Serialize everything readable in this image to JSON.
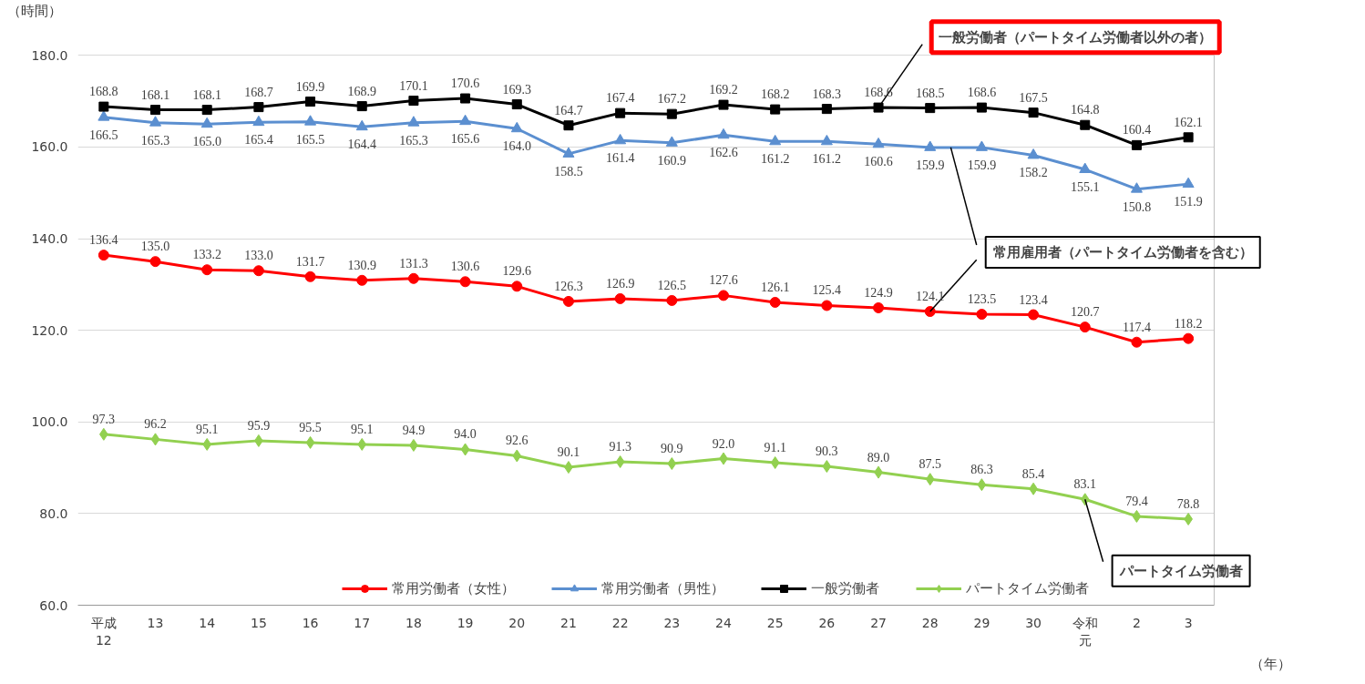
{
  "chart_data": {
    "type": "line",
    "ylabel": "（時間）",
    "xlabel": "（年）",
    "categories": [
      "平成12",
      "13",
      "14",
      "15",
      "16",
      "17",
      "18",
      "19",
      "20",
      "21",
      "22",
      "23",
      "24",
      "25",
      "26",
      "27",
      "28",
      "29",
      "30",
      "令和元",
      "2",
      "3"
    ],
    "series": [
      {
        "name": "常用労働者（女性）",
        "color": "#ff0000",
        "marker": "circle",
        "values": [
          136.4,
          135.0,
          133.2,
          133.0,
          131.7,
          130.9,
          131.3,
          130.6,
          129.6,
          126.3,
          126.9,
          126.5,
          127.6,
          126.1,
          125.4,
          124.9,
          124.1,
          123.5,
          123.4,
          120.7,
          117.4,
          118.2
        ],
        "value_labels": [
          "136.4",
          "135.0",
          "133.2",
          "133.0",
          "131.7",
          "130.9",
          "131.3",
          "130.6",
          "129.6",
          "126.3",
          "126.9",
          "126.5",
          "127.6",
          "126.1",
          "125.4",
          "124.9",
          "124.1",
          "123.5",
          "123.4",
          "120.7",
          "117.4",
          "118.2"
        ]
      },
      {
        "name": "常用労働者（男性）",
        "color": "#5b8fd0",
        "marker": "triangle",
        "values": [
          166.5,
          165.3,
          165.0,
          165.4,
          165.5,
          164.4,
          165.3,
          165.6,
          164.0,
          158.5,
          161.4,
          160.9,
          162.6,
          161.2,
          161.2,
          160.6,
          159.9,
          159.9,
          158.2,
          155.1,
          150.8,
          151.9
        ],
        "value_labels": [
          "166.5",
          "165.3",
          "165.0",
          "165.4",
          "165.5",
          "164.4",
          "165.3",
          "165.6",
          "164.0",
          "158.5",
          "161.4",
          "160.9",
          "162.6",
          "161.2",
          "161.2",
          "160.6",
          "159.9",
          "159.9",
          "158.2",
          "155.1",
          "150.8",
          "151.9"
        ]
      },
      {
        "name": "一般労働者",
        "color": "#000000",
        "marker": "square",
        "values": [
          168.8,
          168.1,
          168.1,
          168.7,
          169.9,
          168.9,
          170.1,
          170.6,
          169.3,
          164.7,
          167.4,
          167.2,
          169.2,
          168.2,
          168.3,
          168.6,
          168.5,
          168.6,
          167.5,
          164.8,
          160.4,
          162.1
        ],
        "value_labels": [
          "168.8",
          "168.1",
          "168.1",
          "168.7",
          "169.9",
          "168.9",
          "170.1",
          "170.6",
          "169.3",
          "164.7",
          "167.4",
          "167.2",
          "169.2",
          "168.2",
          "168.3",
          "168.6",
          "168.5",
          "168.6",
          "167.5",
          "164.8",
          "160.4",
          "162.1"
        ]
      },
      {
        "name": "パートタイム労働者",
        "color": "#92d050",
        "marker": "diamond",
        "values": [
          97.3,
          96.2,
          95.1,
          95.9,
          95.5,
          95.1,
          94.9,
          94.0,
          92.6,
          90.1,
          91.3,
          90.9,
          92.0,
          91.1,
          90.3,
          89.0,
          87.5,
          86.3,
          85.4,
          83.1,
          79.4,
          78.8
        ],
        "value_labels": [
          "97.3",
          "96.2",
          "95.1",
          "95.9",
          "95.5",
          "95.1",
          "94.9",
          "94.0",
          "92.6",
          "90.1",
          "91.3",
          "90.9",
          "92.0",
          "91.1",
          "90.3",
          "89.0",
          "87.5",
          "86.3",
          "85.4",
          "83.1",
          "79.4",
          "78.8"
        ]
      }
    ],
    "ylim": [
      60,
      180
    ],
    "yticks": [
      {
        "value": 60,
        "label": "60.0"
      },
      {
        "value": 80,
        "label": "80.0"
      },
      {
        "value": 100,
        "label": "100.0"
      },
      {
        "value": 120,
        "label": "120.0"
      },
      {
        "value": 140,
        "label": "140.0"
      },
      {
        "value": 160,
        "label": "160.0"
      },
      {
        "value": 180,
        "label": "180.0"
      }
    ],
    "grid": "y",
    "legend": "bottom",
    "line_style": "solid",
    "annotations": [
      {
        "text": "一般労働者（パートタイム労働者以外の者）",
        "x": "27",
        "y": 168.6
      },
      {
        "text": "常用雇用者（パートタイム労働者を含む）",
        "x": "28",
        "y": 124.1
      },
      {
        "text": "パートタイム労働者",
        "x": "令和元",
        "y": 83.1
      }
    ]
  }
}
